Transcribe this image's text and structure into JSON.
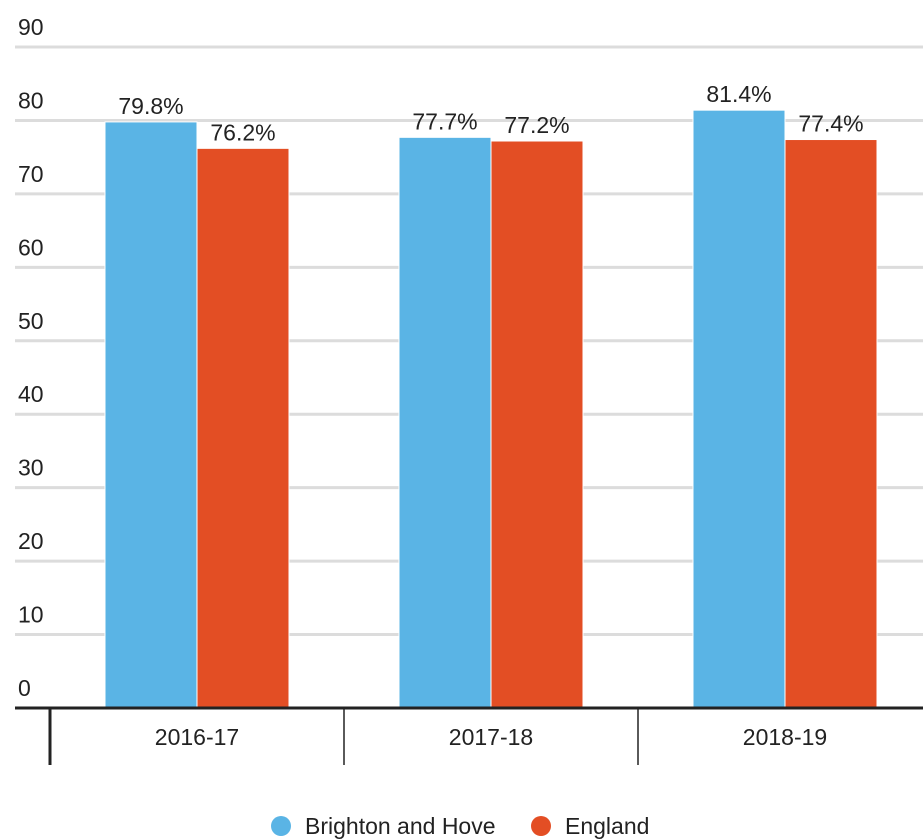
{
  "chart_data": {
    "type": "bar",
    "categories": [
      "2016-17",
      "2017-18",
      "2018-19"
    ],
    "series": [
      {
        "name": "Brighton and Hove",
        "color": "#5ab4e5",
        "values": [
          79.8,
          77.7,
          81.4
        ],
        "value_labels": [
          "79.8%",
          "77.7%",
          "81.4%"
        ]
      },
      {
        "name": "England",
        "color": "#e34e24",
        "values": [
          76.2,
          77.2,
          77.4
        ],
        "value_labels": [
          "76.2%",
          "77.2%",
          "77.4%"
        ]
      }
    ],
    "ylim": [
      0,
      90
    ],
    "yticks": [
      0,
      10,
      20,
      30,
      40,
      50,
      60,
      70,
      80,
      90
    ],
    "grid": true,
    "legend": "bottom"
  }
}
